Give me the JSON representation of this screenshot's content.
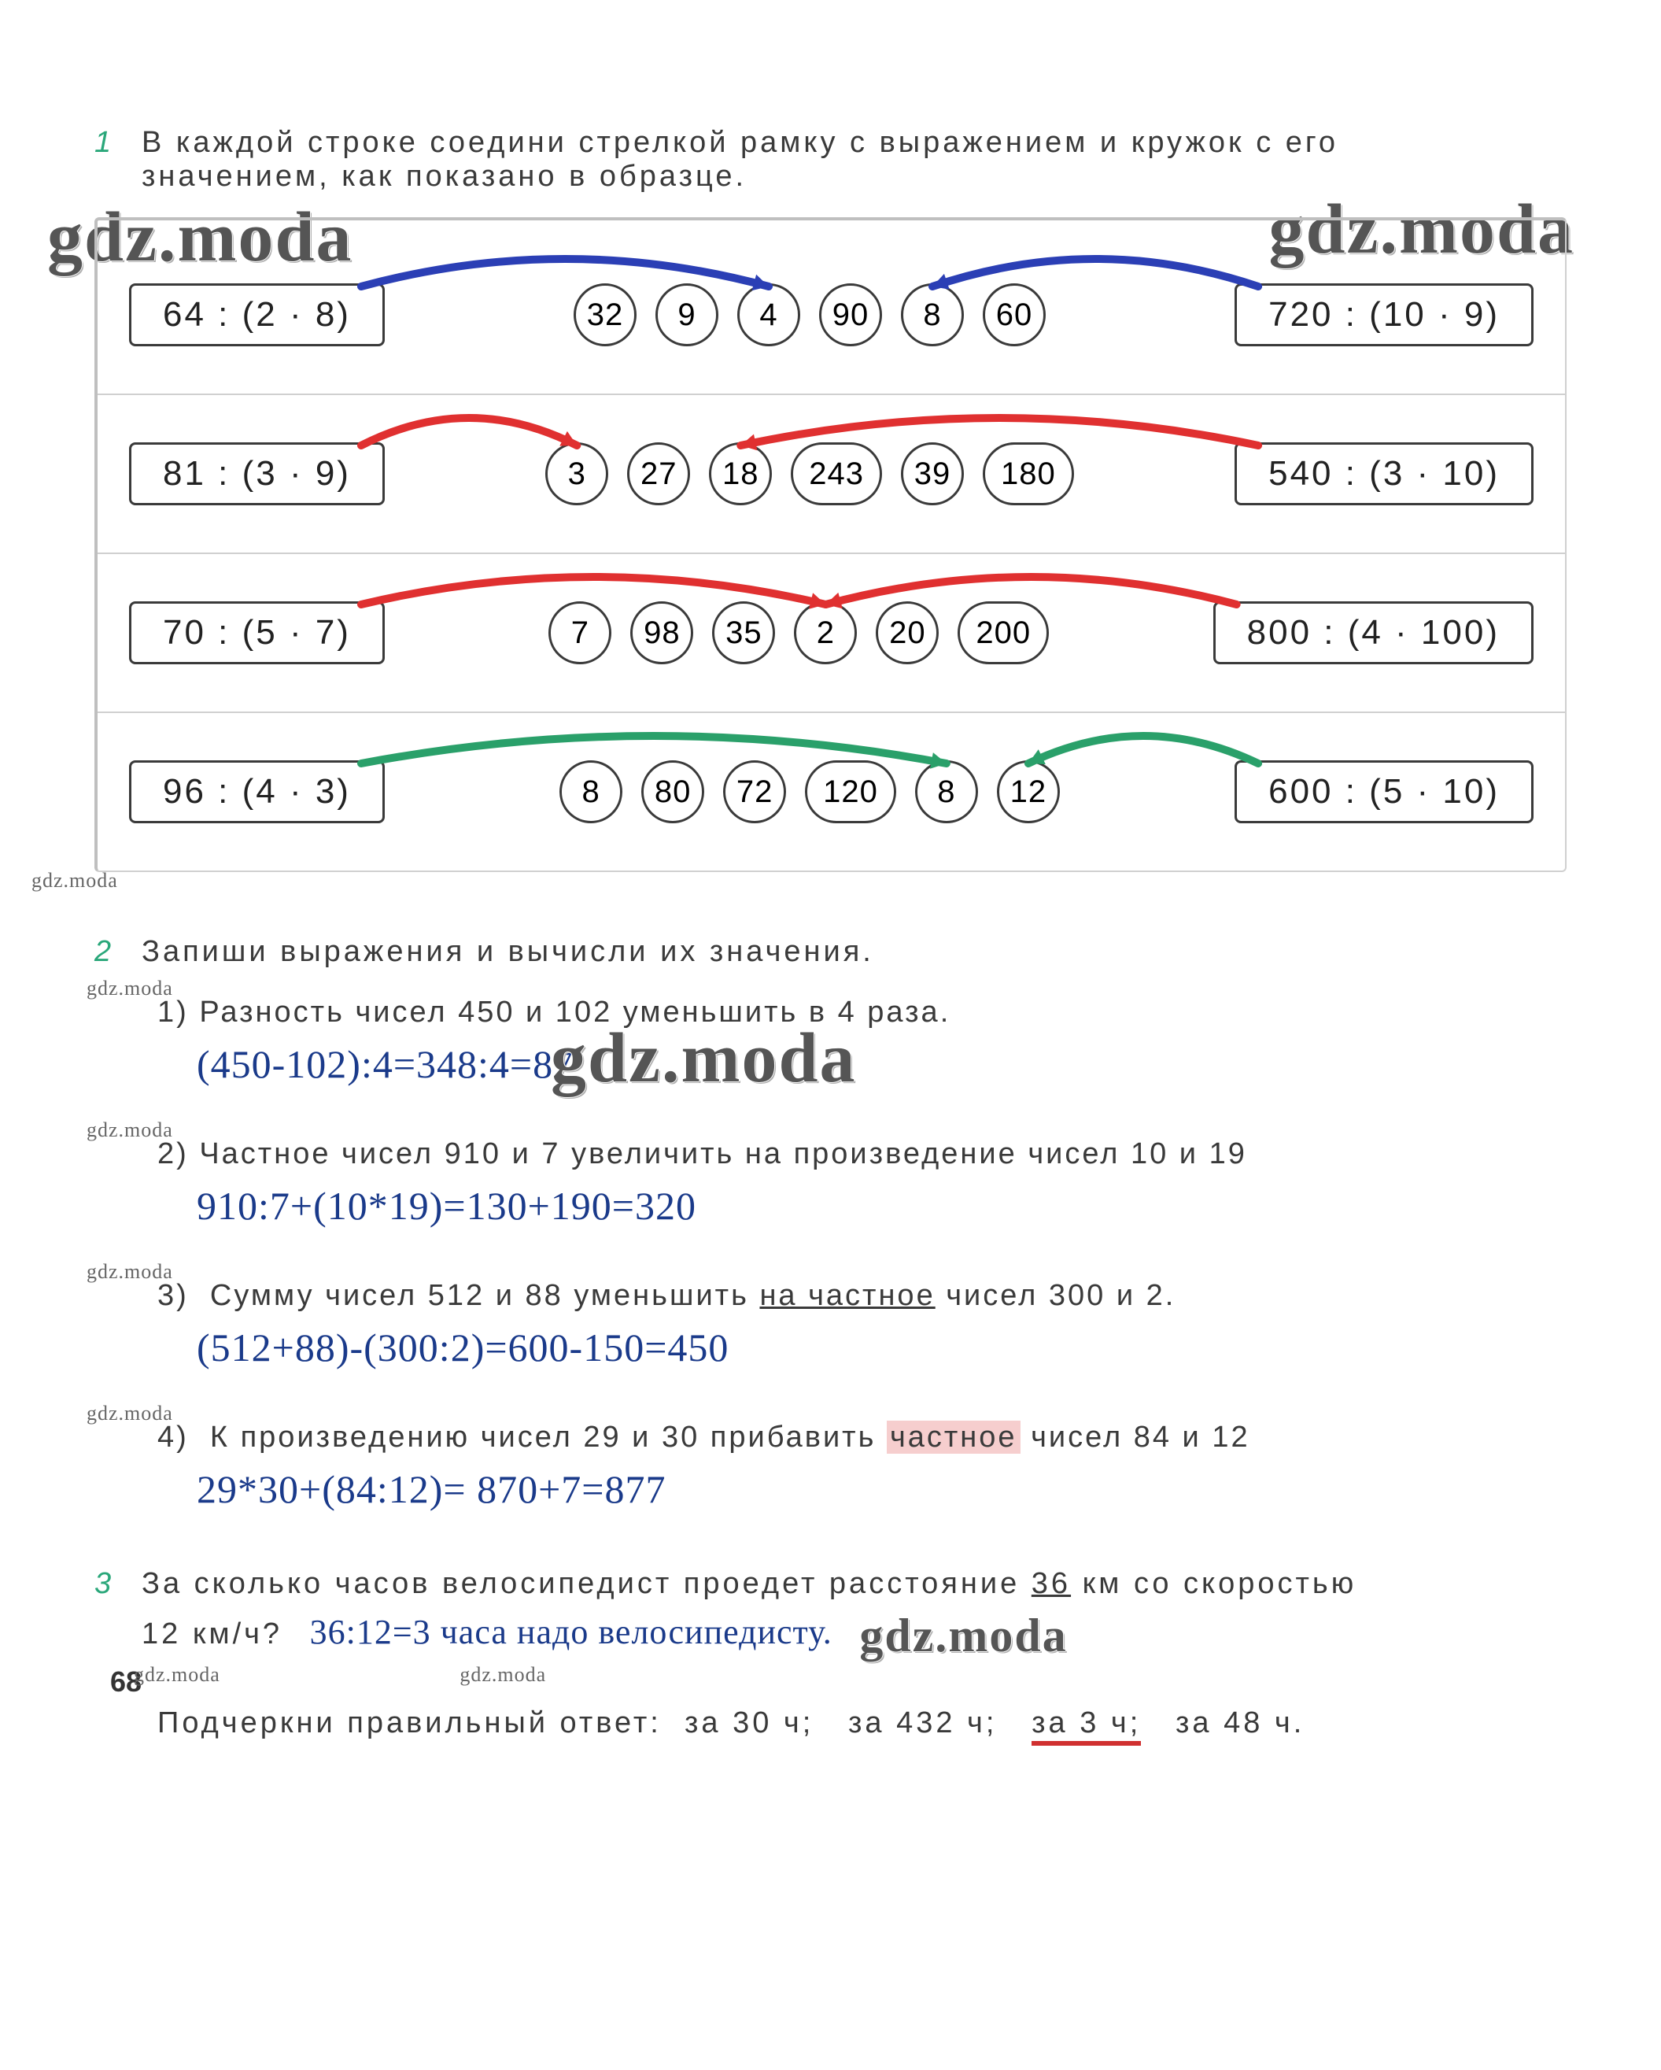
{
  "watermarks": {
    "text": "gdz.moda",
    "large_color": "#555555",
    "small_color": "#666666"
  },
  "task1": {
    "num": "1",
    "text_line1": "В каждой строке соедини стрелкой рамку с выражением и кружок с его",
    "text_line2": "значением, как показано в образце.",
    "rows": [
      {
        "left_expr": "64 : (2 · 8)",
        "circles": [
          "32",
          "9",
          "4",
          "90",
          "8",
          "60"
        ],
        "right_expr": "720 : (10 · 9)",
        "arrow_color": "#2b3fb5",
        "left_target": 2,
        "right_target": 4
      },
      {
        "left_expr": "81 : (3 · 9)",
        "circles": [
          "3",
          "27",
          "18",
          "243",
          "39",
          "180"
        ],
        "right_expr": "540 : (3 · 10)",
        "arrow_color": "#e03030",
        "left_target": 0,
        "right_target": 2
      },
      {
        "left_expr": "70 : (5 · 7)",
        "circles": [
          "7",
          "98",
          "35",
          "2",
          "20",
          "200"
        ],
        "right_expr": "800 : (4 · 100)",
        "arrow_color": "#e03030",
        "left_target": 3,
        "right_target": 3
      },
      {
        "left_expr": "96 : (4 · 3)",
        "circles": [
          "8",
          "80",
          "72",
          "120",
          "8",
          "12"
        ],
        "right_expr": "600 : (5 · 10)",
        "arrow_color": "#2aa06a",
        "left_target": 4,
        "right_target": 5
      }
    ]
  },
  "task2": {
    "num": "2",
    "title": "Запиши выражения и вычисли их значения.",
    "items": [
      {
        "n": "1)",
        "text": "Разность чисел 450 и 102 уменьшить в 4 раза.",
        "answer": "(450-102):4=348:4=87"
      },
      {
        "n": "2)",
        "text": "Частное чисел 910 и 7 увеличить на произведение чисел 10 и 19",
        "answer": "910:7+(10*19)=130+190=320"
      },
      {
        "n": "3)",
        "text": "Сумму чисел 512 и 88 уменьшить на частное чисел 300 и 2.",
        "answer": "(512+88)-(300:2)=600-150=450"
      },
      {
        "n": "4)",
        "text": "К произведению чисел 29 и 30 прибавить частное чисел 84 и 12",
        "answer": "29*30+(84:12)= 870+7=877"
      }
    ]
  },
  "task3": {
    "num": "3",
    "line1": "За сколько часов велосипедист проедет расстояние 36 км со скоростью",
    "line2a": "12 км/ч?",
    "line2b": "36:12=3 часа надо велосипедисту.",
    "page_num": "68",
    "line3_prefix": "Подчеркни правильный ответ:",
    "options": [
      "за 30 ч;",
      "за 432 ч;",
      "за 3 ч;",
      "за 48 ч."
    ],
    "correct_index": 2
  },
  "colors": {
    "blue_answer": "#1a3a8a",
    "body_text": "#3a3a3a",
    "task_num": "#2aa77a"
  }
}
